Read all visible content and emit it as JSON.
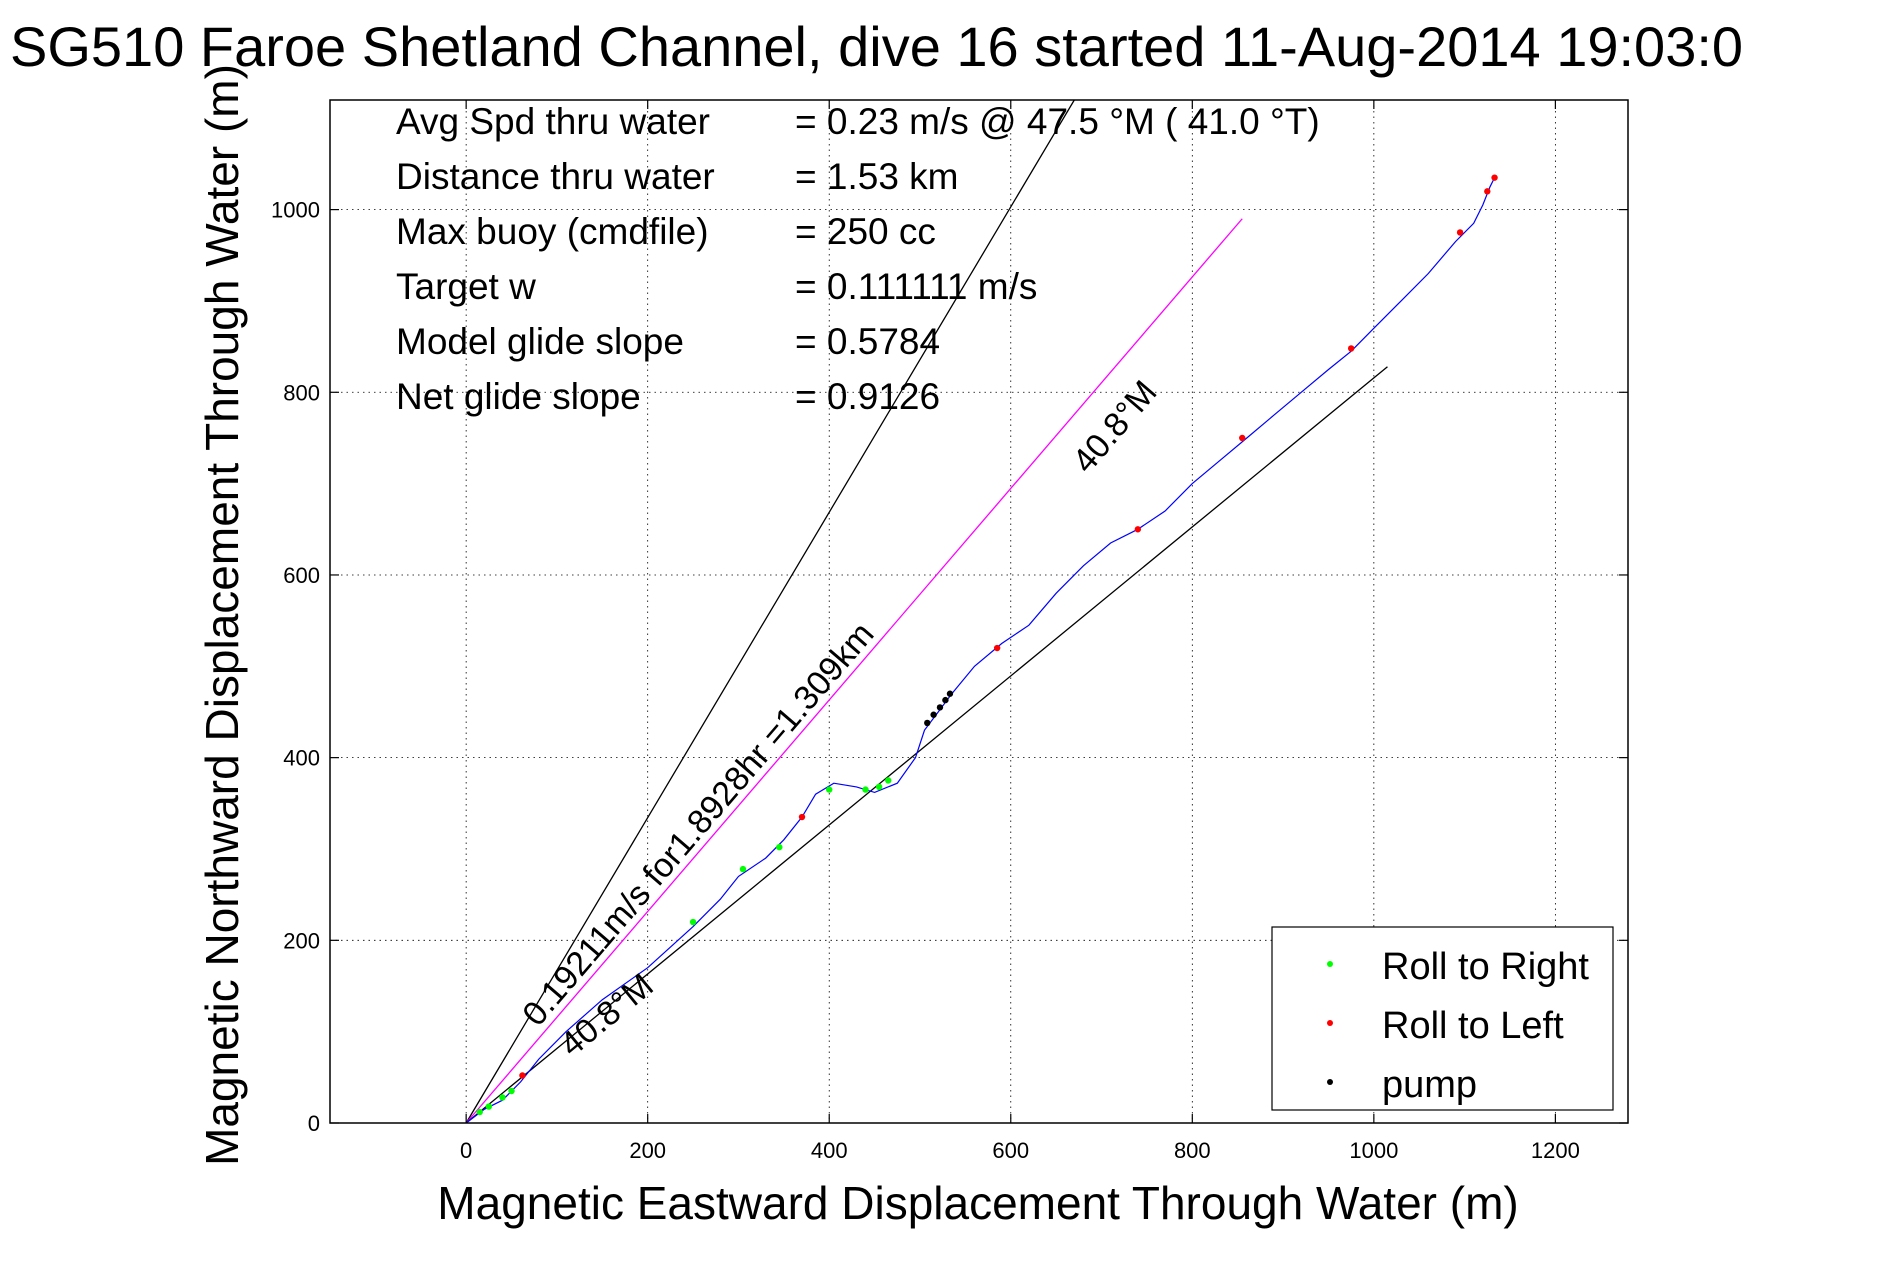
{
  "chart_data": {
    "type": "scatter",
    "title": "SG510 Faroe Shetland Channel, dive 16 started 11-Aug-2014 19:03:0",
    "xlabel": "Magnetic Eastward Displacement Through Water (m)",
    "ylabel": "Magnetic Northward Displacement Through Water (m)",
    "xlim": [
      -150,
      1280
    ],
    "ylim": [
      0,
      1120
    ],
    "xticks": [
      0,
      200,
      400,
      600,
      800,
      1000,
      1200
    ],
    "yticks": [
      0,
      200,
      400,
      600,
      800,
      1000
    ],
    "grid": true,
    "legend_position": "bottom-right",
    "info_rows": [
      {
        "label": "Avg Spd thru water",
        "value": "=  0.23 m/s @  47.5 °M ( 41.0 °T)"
      },
      {
        "label": "Distance thru water",
        "value": "=  1.53 km"
      },
      {
        "label": "Max buoy (cmdfile)",
        "value": "= 250 cc"
      },
      {
        "label": "Target w",
        "value": "= 0.111111 m/s"
      },
      {
        "label": "Model glide slope",
        "value": "= 0.5784"
      },
      {
        "label": "Net glide slope",
        "value": "= 0.9126"
      }
    ],
    "annotations": [
      {
        "text": "0.19211m/s for1.8928hr =1.309km"
      },
      {
        "text": "40.8°M"
      },
      {
        "text": "40.8°M"
      }
    ],
    "reference_lines": [
      {
        "name": "upper-bound",
        "color": "#000000",
        "points": [
          [
            0,
            0
          ],
          [
            670,
            1120
          ]
        ]
      },
      {
        "name": "current-vector",
        "color": "#ff00ff",
        "points": [
          [
            0,
            0
          ],
          [
            855,
            990
          ]
        ]
      },
      {
        "name": "lower-bound",
        "color": "#000000",
        "points": [
          [
            0,
            0
          ],
          [
            1015,
            828
          ]
        ]
      }
    ],
    "track": {
      "color": "#0000ff",
      "points": [
        [
          0,
          0
        ],
        [
          20,
          15
        ],
        [
          40,
          25
        ],
        [
          60,
          45
        ],
        [
          80,
          70
        ],
        [
          110,
          100
        ],
        [
          150,
          135
        ],
        [
          200,
          170
        ],
        [
          250,
          215
        ],
        [
          280,
          245
        ],
        [
          300,
          270
        ],
        [
          330,
          290
        ],
        [
          350,
          310
        ],
        [
          370,
          335
        ],
        [
          385,
          360
        ],
        [
          405,
          372
        ],
        [
          430,
          368
        ],
        [
          450,
          362
        ],
        [
          475,
          372
        ],
        [
          495,
          400
        ],
        [
          505,
          430
        ],
        [
          520,
          450
        ],
        [
          535,
          470
        ],
        [
          560,
          500
        ],
        [
          590,
          525
        ],
        [
          620,
          545
        ],
        [
          650,
          580
        ],
        [
          680,
          610
        ],
        [
          710,
          635
        ],
        [
          740,
          650
        ],
        [
          770,
          670
        ],
        [
          800,
          700
        ],
        [
          830,
          725
        ],
        [
          860,
          750
        ],
        [
          890,
          775
        ],
        [
          920,
          800
        ],
        [
          950,
          825
        ],
        [
          975,
          845
        ],
        [
          1000,
          870
        ],
        [
          1030,
          900
        ],
        [
          1060,
          930
        ],
        [
          1090,
          965
        ],
        [
          1110,
          985
        ],
        [
          1120,
          1005
        ],
        [
          1128,
          1025
        ],
        [
          1133,
          1035
        ]
      ]
    },
    "series": [
      {
        "name": "Roll to Right",
        "color": "#00ff00",
        "points": [
          [
            15,
            12
          ],
          [
            25,
            18
          ],
          [
            40,
            28
          ],
          [
            50,
            35
          ],
          [
            250,
            220
          ],
          [
            305,
            278
          ],
          [
            345,
            302
          ],
          [
            400,
            365
          ],
          [
            440,
            365
          ],
          [
            455,
            368
          ],
          [
            465,
            375
          ]
        ]
      },
      {
        "name": "Roll to Left",
        "color": "#ff0000",
        "points": [
          [
            62,
            52
          ],
          [
            370,
            335
          ],
          [
            585,
            520
          ],
          [
            740,
            650
          ],
          [
            855,
            750
          ],
          [
            975,
            848
          ],
          [
            1095,
            975
          ],
          [
            1125,
            1020
          ],
          [
            1133,
            1035
          ]
        ]
      },
      {
        "name": "pump",
        "color": "#000000",
        "points": [
          [
            508,
            438
          ],
          [
            515,
            447
          ],
          [
            522,
            455
          ],
          [
            528,
            463
          ],
          [
            533,
            470
          ]
        ]
      }
    ]
  }
}
